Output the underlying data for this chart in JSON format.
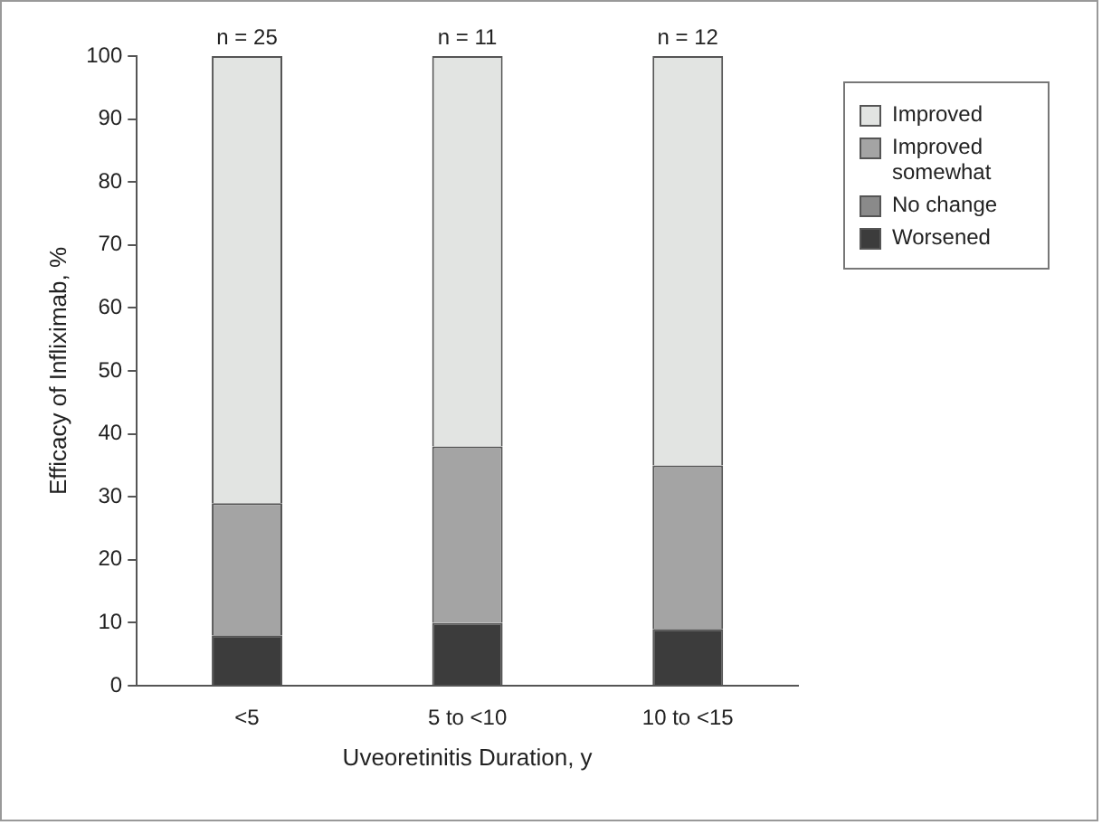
{
  "chart_data": {
    "type": "bar",
    "stacked": true,
    "xlabel": "Uveoretinitis Duration, y",
    "ylabel": "Efficacy of Infliximab, %",
    "categories": [
      "<5",
      "5 to <10",
      "10 to <15"
    ],
    "series": [
      {
        "name": "Worsened",
        "color": "#3c3c3c",
        "values": [
          8,
          10,
          9
        ]
      },
      {
        "name": "No change",
        "color": "#8a8a8a",
        "values": [
          0,
          0,
          0
        ]
      },
      {
        "name": "Improved somewhat",
        "color": "#a4a4a4",
        "values": [
          21,
          28,
          26
        ]
      },
      {
        "name": "Improved",
        "color": "#e2e4e2",
        "values": [
          71,
          62,
          65
        ]
      }
    ],
    "ylim": [
      0,
      100
    ],
    "yticks": [
      0,
      10,
      20,
      30,
      40,
      50,
      60,
      70,
      80,
      90,
      100
    ],
    "grid": false,
    "legend": "top right",
    "annotations": [
      {
        "text": "n = 25",
        "x": "<5",
        "y": 100
      },
      {
        "text": "n = 11",
        "x": "5 to <10",
        "y": 100
      },
      {
        "text": "n = 12",
        "x": "10 to <15",
        "y": 100
      }
    ]
  }
}
